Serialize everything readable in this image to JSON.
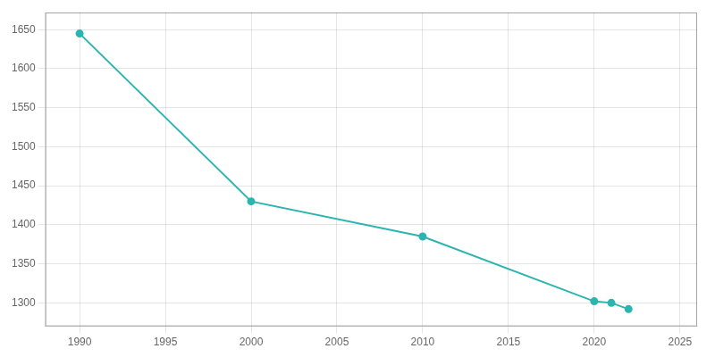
{
  "chart_data": {
    "type": "line",
    "x": [
      1990,
      2000,
      2010,
      2020,
      2021,
      2022
    ],
    "values": [
      1645,
      1430,
      1385,
      1302,
      1300,
      1292
    ],
    "color": "#2ab5b0",
    "marker": "o",
    "xlim": [
      1988,
      2026
    ],
    "ylim": [
      1270,
      1672
    ],
    "xticks": [
      1990,
      1995,
      2000,
      2005,
      2010,
      2015,
      2020,
      2025
    ],
    "yticks": [
      1300,
      1350,
      1400,
      1450,
      1500,
      1550,
      1600,
      1650
    ],
    "grid": true
  }
}
